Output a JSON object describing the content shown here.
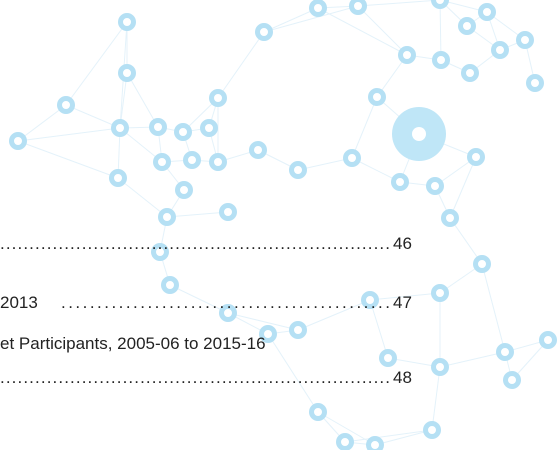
{
  "toc": {
    "entries": [
      {
        "leader": "...................................................................",
        "page": "46"
      },
      {
        "text": "2013",
        "leader": "..............................................",
        "page": "47"
      },
      {
        "text": "et Participants, 2005-06 to 2015-16"
      },
      {
        "leader": "...................................................................",
        "page": "48"
      }
    ]
  }
}
